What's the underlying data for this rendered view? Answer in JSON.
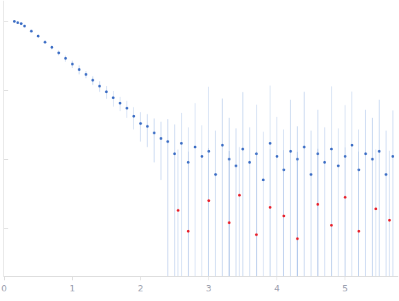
{
  "chart_data": {
    "type": "scatter",
    "log": "y",
    "grid": false,
    "tick_labels": "x",
    "xlim": [
      0,
      5.78
    ],
    "xticks": [
      0,
      1,
      2,
      3,
      4,
      5
    ],
    "ylim": [
      0.0002,
      2
    ],
    "yticks": [
      1,
      0.1,
      0.01,
      0.001
    ],
    "series": [
      {
        "color": "#3a6cc4",
        "x": [
          0.15,
          0.2,
          0.25,
          0.3,
          0.4,
          0.5,
          0.6,
          0.7,
          0.8,
          0.9,
          1.0,
          1.1,
          1.2,
          1.3,
          1.4,
          1.5,
          1.6,
          1.7,
          1.8,
          1.9,
          2.0,
          2.1,
          2.2,
          2.3,
          2.4,
          2.5,
          2.6,
          2.7,
          2.8,
          2.9,
          3.0,
          3.1,
          3.2,
          3.3,
          3.4,
          3.5,
          3.6,
          3.7,
          3.8,
          3.9,
          4.0,
          4.1,
          4.2,
          4.3,
          4.4,
          4.5,
          4.6,
          4.7,
          4.8,
          4.9,
          5.0,
          5.1,
          5.2,
          5.3,
          5.4,
          5.5,
          5.6,
          5.7
        ],
        "values": [
          1.0,
          0.96,
          0.93,
          0.86,
          0.72,
          0.61,
          0.5,
          0.42,
          0.35,
          0.29,
          0.24,
          0.2,
          0.17,
          0.14,
          0.115,
          0.095,
          0.078,
          0.065,
          0.055,
          0.042,
          0.033,
          0.03,
          0.024,
          0.02,
          0.018,
          0.012,
          0.017,
          0.009,
          0.015,
          0.011,
          0.013,
          0.006,
          0.016,
          0.01,
          0.008,
          0.014,
          0.009,
          0.012,
          0.005,
          0.017,
          0.011,
          0.007,
          0.013,
          0.01,
          0.015,
          0.006,
          0.012,
          0.009,
          0.014,
          0.008,
          0.011,
          0.016,
          0.007,
          0.012,
          0.01,
          0.013,
          0.006,
          0.011
        ],
        "errors": [
          0.03,
          0.03,
          0.03,
          0.03,
          0.03,
          0.03,
          0.03,
          0.03,
          0.03,
          0.03,
          0.03,
          0.03,
          0.02,
          0.02,
          0.02,
          0.02,
          0.02,
          0.015,
          0.015,
          0.015,
          0.015,
          0.015,
          0.015,
          0.015,
          0.02,
          0.02,
          0.03,
          0.02,
          0.05,
          0.02,
          0.1,
          0.02,
          0.06,
          0.03,
          0.02,
          0.08,
          0.02,
          0.05,
          0.02,
          0.1,
          0.03,
          0.02,
          0.06,
          0.02,
          0.08,
          0.02,
          0.04,
          0.02,
          0.1,
          0.02,
          0.05,
          0.08,
          0.02,
          0.04,
          0.03,
          0.06,
          0.02,
          0.04
        ]
      },
      {
        "color": "#e8202a",
        "x": [
          2.55,
          2.7,
          3.0,
          3.3,
          3.45,
          3.7,
          3.9,
          4.1,
          4.3,
          4.6,
          4.8,
          5.0,
          5.2,
          5.45,
          5.65
        ],
        "values": [
          0.0018,
          0.0009,
          0.0025,
          0.0012,
          0.003,
          0.0008,
          0.002,
          0.0015,
          0.0007,
          0.0022,
          0.0011,
          0.0028,
          0.0009,
          0.0019,
          0.0013
        ],
        "errors": [
          0.012,
          0.012,
          0.012,
          0.012,
          0.012,
          0.012,
          0.012,
          0.012,
          0.012,
          0.012,
          0.012,
          0.012,
          0.012,
          0.012,
          0.012
        ]
      }
    ]
  }
}
